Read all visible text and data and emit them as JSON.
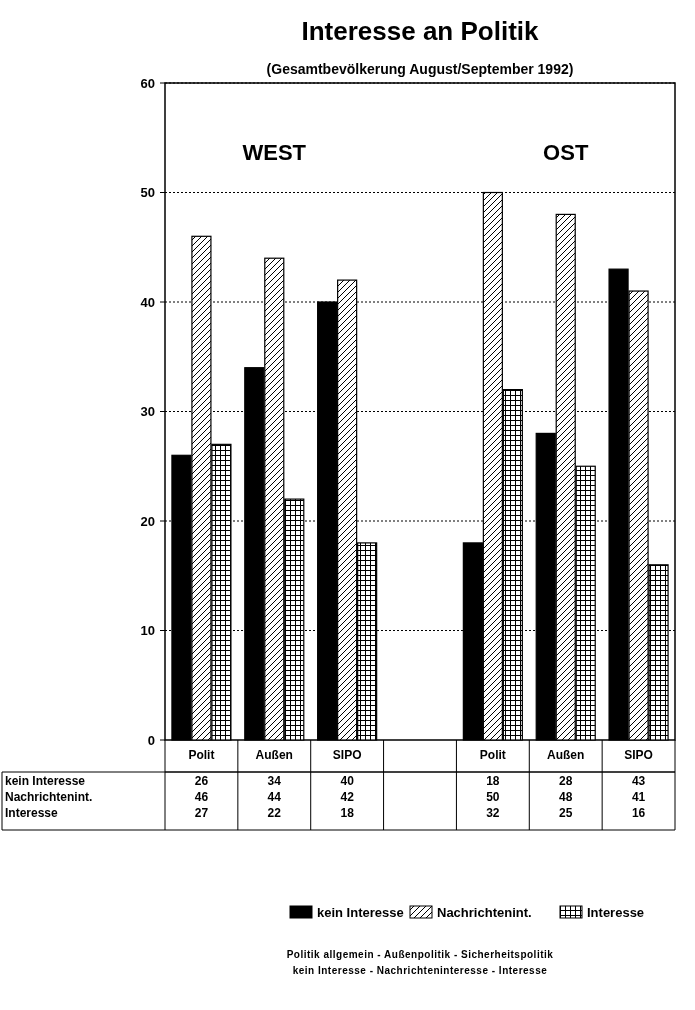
{
  "chart_data": {
    "type": "bar",
    "title": "Interesse an Politik",
    "subtitle": "(Gesamtbevölkerung August/September 1992)",
    "categories": [
      "Polit",
      "Außen",
      "SIPO",
      null,
      "Polit",
      "Außen",
      "SIPO"
    ],
    "series": [
      {
        "name": "kein Interesse",
        "color": "#000000",
        "values": [
          26,
          34,
          40,
          null,
          18,
          28,
          43
        ]
      },
      {
        "name": "Nachrichtenint.",
        "color": "#000000",
        "values": [
          46,
          44,
          42,
          null,
          50,
          48,
          41
        ]
      },
      {
        "name": "Interesse",
        "color": "#000000",
        "values": [
          27,
          22,
          18,
          null,
          32,
          25,
          16
        ]
      }
    ],
    "ylim": [
      0,
      60
    ],
    "yticks": [
      0,
      10,
      20,
      30,
      40,
      50,
      60
    ],
    "grid": "y",
    "legend": "bottom",
    "data_labels": true,
    "annotations": [
      "WEST",
      "OST",
      "Politik allgemein - Außenpolitik - Sicherheitspolitik",
      "kein Interesse - Nachrichteninteresse - Interesse"
    ]
  }
}
